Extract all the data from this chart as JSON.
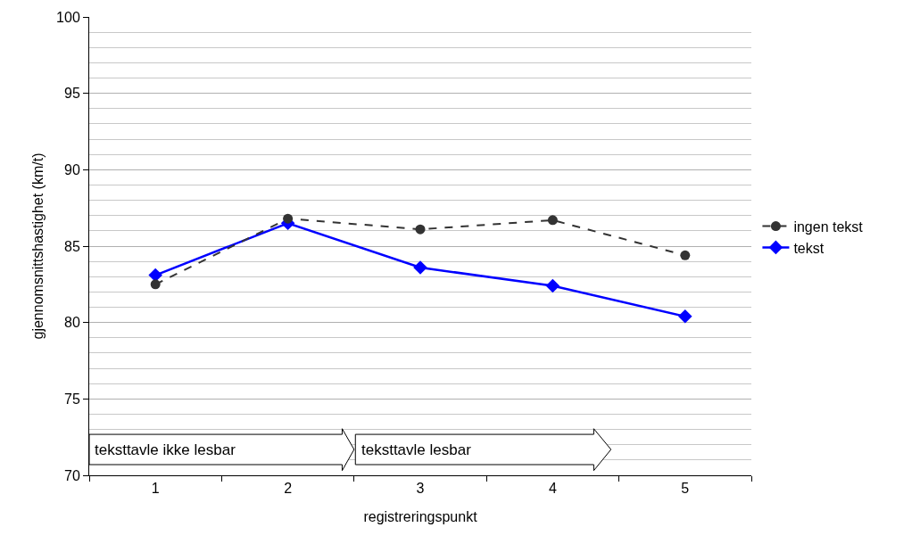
{
  "chart_data": {
    "type": "line",
    "xlabel": "registreringspunkt",
    "ylabel": "gjennomsnittshastighet (km/t)",
    "categories": [
      "1",
      "2",
      "3",
      "4",
      "5"
    ],
    "series": [
      {
        "name": "ingen tekst",
        "color": "#333333",
        "values": [
          82.5,
          86.8,
          86.1,
          86.7,
          84.4
        ],
        "marker": "circle",
        "line_style": "dashed"
      },
      {
        "name": "tekst",
        "color": "#0000ff",
        "values": [
          83.1,
          86.5,
          83.6,
          82.4,
          80.4
        ],
        "marker": "diamond",
        "line_style": "solid"
      }
    ],
    "ylim": [
      70,
      100
    ],
    "yticks": [
      70,
      75,
      80,
      85,
      90,
      95,
      100
    ],
    "grid": "y",
    "legend": "right",
    "annotations": [
      "teksttavle ikke lesbar",
      "teksttavle lesbar"
    ]
  }
}
